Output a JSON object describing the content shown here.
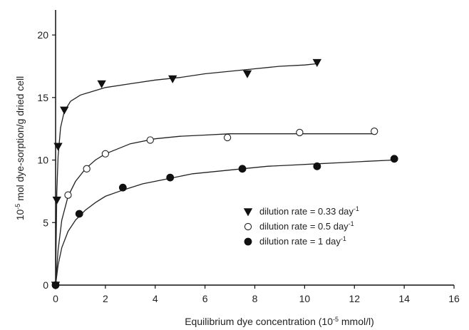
{
  "chart_data": {
    "type": "scatter",
    "xlabel": "Equilibrium dye concentration (10",
    "xlabel_sup": "-5",
    "xlabel_tail": " mmol/l)",
    "ylabel": "10",
    "ylabel_sup": "-5",
    "ylabel_tail": " mol dye-sorption/g dried cell",
    "xlim": [
      0,
      16
    ],
    "ylim": [
      0,
      22
    ],
    "xticks": [
      0,
      2,
      4,
      6,
      8,
      10,
      12,
      14,
      16
    ],
    "yticks": [
      0,
      5,
      10,
      15,
      20
    ],
    "grid": false,
    "legend_position": "bottom-right",
    "series": [
      {
        "name": "dilution rate = 0.33 day",
        "name_sup": "-1",
        "marker": "triangle-down",
        "fill": "#111111",
        "points": [
          [
            0,
            0
          ],
          [
            0.05,
            6.8
          ],
          [
            0.1,
            11.1
          ],
          [
            0.35,
            14.0
          ],
          [
            1.85,
            16.1
          ],
          [
            4.7,
            16.5
          ],
          [
            7.7,
            16.9
          ],
          [
            10.5,
            17.8
          ]
        ],
        "fit": [
          [
            0,
            0
          ],
          [
            0.05,
            7.4
          ],
          [
            0.1,
            10.3
          ],
          [
            0.2,
            12.6
          ],
          [
            0.35,
            13.9
          ],
          [
            0.6,
            14.7
          ],
          [
            1.0,
            15.2
          ],
          [
            2.0,
            15.8
          ],
          [
            3.0,
            16.1
          ],
          [
            4.0,
            16.4
          ],
          [
            5.0,
            16.6
          ],
          [
            6.0,
            16.9
          ],
          [
            7.0,
            17.1
          ],
          [
            8.0,
            17.3
          ],
          [
            9.0,
            17.5
          ],
          [
            10.0,
            17.6
          ],
          [
            10.5,
            17.7
          ]
        ]
      },
      {
        "name": "dilution rate = 0.5 day",
        "name_sup": "-1",
        "marker": "circle-open",
        "fill": "#ffffff",
        "points": [
          [
            0,
            0
          ],
          [
            0.5,
            7.2
          ],
          [
            1.25,
            9.3
          ],
          [
            2.0,
            10.5
          ],
          [
            3.8,
            11.6
          ],
          [
            6.9,
            11.8
          ],
          [
            9.8,
            12.2
          ],
          [
            12.8,
            12.3
          ]
        ],
        "fit": [
          [
            0,
            0
          ],
          [
            0.1,
            2.8
          ],
          [
            0.25,
            5.2
          ],
          [
            0.5,
            7.1
          ],
          [
            0.8,
            8.3
          ],
          [
            1.2,
            9.3
          ],
          [
            1.6,
            10.0
          ],
          [
            2.0,
            10.5
          ],
          [
            2.5,
            10.9
          ],
          [
            3.0,
            11.3
          ],
          [
            4.0,
            11.7
          ],
          [
            5.0,
            11.9
          ],
          [
            6.0,
            12.0
          ],
          [
            7.0,
            12.1
          ],
          [
            8.0,
            12.1
          ],
          [
            9.0,
            12.1
          ],
          [
            10.0,
            12.1
          ],
          [
            11.0,
            12.1
          ],
          [
            12.8,
            12.1
          ]
        ]
      },
      {
        "name": "dilution rate = 1 day",
        "name_sup": "-1",
        "marker": "circle-filled",
        "fill": "#111111",
        "points": [
          [
            0,
            0
          ],
          [
            0.95,
            5.7
          ],
          [
            2.7,
            7.8
          ],
          [
            4.6,
            8.6
          ],
          [
            7.5,
            9.3
          ],
          [
            10.5,
            9.5
          ],
          [
            13.6,
            10.1
          ]
        ],
        "fit": [
          [
            0,
            0
          ],
          [
            0.1,
            1.6
          ],
          [
            0.25,
            3.0
          ],
          [
            0.5,
            4.3
          ],
          [
            0.8,
            5.2
          ],
          [
            1.2,
            6.0
          ],
          [
            1.6,
            6.6
          ],
          [
            2.0,
            7.1
          ],
          [
            2.7,
            7.6
          ],
          [
            3.5,
            8.1
          ],
          [
            4.5,
            8.5
          ],
          [
            5.5,
            8.9
          ],
          [
            6.5,
            9.1
          ],
          [
            7.5,
            9.3
          ],
          [
            8.5,
            9.5
          ],
          [
            9.5,
            9.6
          ],
          [
            10.5,
            9.7
          ],
          [
            11.5,
            9.8
          ],
          [
            12.5,
            9.9
          ],
          [
            13.6,
            10.0
          ]
        ]
      }
    ]
  }
}
